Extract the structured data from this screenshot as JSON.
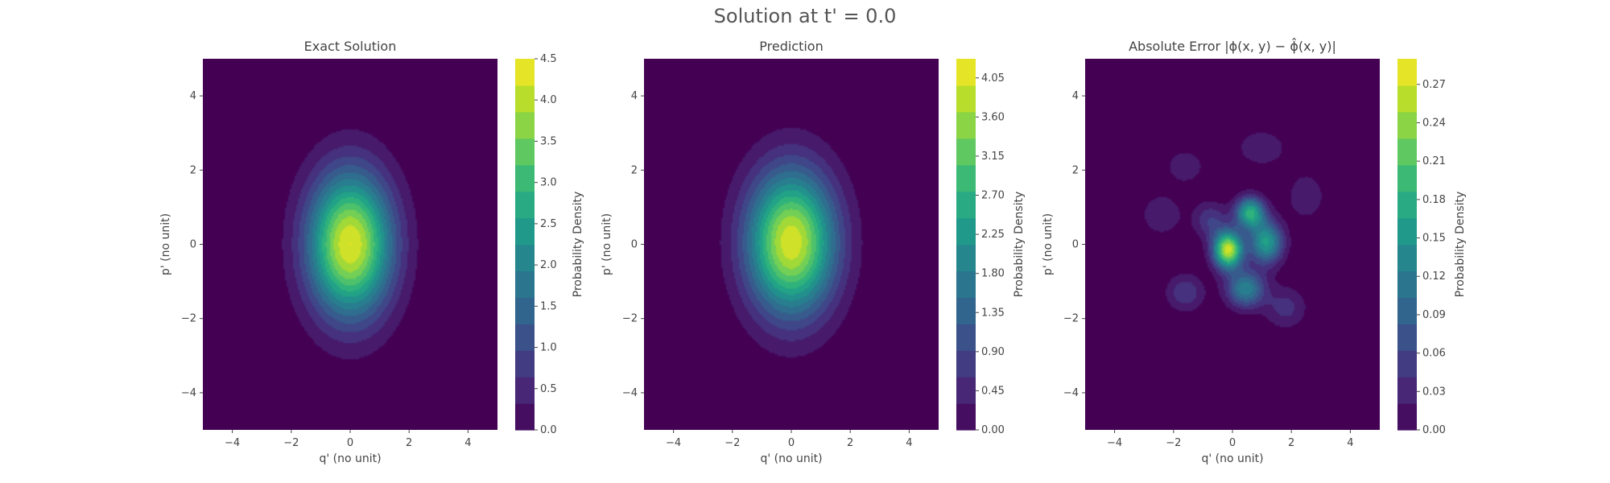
{
  "figure": {
    "suptitle": "Solution at t' = 0.0"
  },
  "colors": {
    "viridis": [
      "#440154",
      "#482878",
      "#3e4989",
      "#31688e",
      "#26828e",
      "#1f9e89",
      "#35b779",
      "#6ece58",
      "#b5de2b",
      "#fde725"
    ],
    "text": "#444444"
  },
  "chart_data": [
    {
      "type": "heatmap",
      "title": "Exact Solution",
      "xlabel": "q' (no unit)",
      "ylabel": "p' (no unit)",
      "xlim": [
        -5,
        5
      ],
      "ylim": [
        -5,
        5
      ],
      "xticks": [
        "−4",
        "−2",
        "0",
        "2",
        "4"
      ],
      "yticks": [
        "4",
        "2",
        "0",
        "−2",
        "−4"
      ],
      "colorbar": {
        "label": "Probability Density",
        "range": [
          0,
          4.5
        ],
        "ticks": [
          "0.0",
          "0.5",
          "1.0",
          "1.5",
          "2.0",
          "2.5",
          "3.0",
          "3.5",
          "4.0",
          "4.5"
        ]
      },
      "field": {
        "description": "Gaussian peak",
        "peaks": [
          {
            "q": 0,
            "p": 0,
            "amplitude": 4.5,
            "sigma_q": 1.0,
            "sigma_p": 1.35
          }
        ]
      }
    },
    {
      "type": "heatmap",
      "title": "Prediction",
      "xlabel": "q' (no unit)",
      "ylabel": "p' (no unit)",
      "xlim": [
        -5,
        5
      ],
      "ylim": [
        -5,
        5
      ],
      "xticks": [
        "−4",
        "−2",
        "0",
        "2",
        "4"
      ],
      "yticks": [
        "4",
        "2",
        "0",
        "−2",
        "−4"
      ],
      "colorbar": {
        "label": "Probability Density",
        "range": [
          0,
          4.27
        ],
        "ticks": [
          "0.00",
          "0.45",
          "0.90",
          "1.35",
          "1.80",
          "2.25",
          "2.70",
          "3.15",
          "3.60",
          "4.05"
        ]
      },
      "field": {
        "description": "Gaussian peak with slight distortion",
        "peaks": [
          {
            "q": 0,
            "p": 0.05,
            "amplitude": 4.2,
            "sigma_q": 1.05,
            "sigma_p": 1.35
          }
        ]
      }
    },
    {
      "type": "heatmap",
      "title": "Absolute Error |ϕ(x, y) − ϕ̂(x, y)|",
      "xlabel": "q' (no unit)",
      "ylabel": "p' (no unit)",
      "xlim": [
        -5,
        5
      ],
      "ylim": [
        -5,
        5
      ],
      "xticks": [
        "−4",
        "−2",
        "0",
        "2",
        "4"
      ],
      "yticks": [
        "4",
        "2",
        "0",
        "−2",
        "−4"
      ],
      "colorbar": {
        "label": "Probability Density",
        "range": [
          0,
          0.29
        ],
        "ticks": [
          "0.00",
          "0.03",
          "0.06",
          "0.09",
          "0.12",
          "0.15",
          "0.18",
          "0.21",
          "0.24",
          "0.27"
        ]
      },
      "field": {
        "description": "Error lobes around origin",
        "peaks": [
          {
            "q": -0.15,
            "p": -0.15,
            "amplitude": 0.28,
            "sigma_q": 0.35,
            "sigma_p": 0.35
          },
          {
            "q": 0.6,
            "p": 0.85,
            "amplitude": 0.19,
            "sigma_q": 0.35,
            "sigma_p": 0.3
          },
          {
            "q": 1.15,
            "p": 0.05,
            "amplitude": 0.17,
            "sigma_q": 0.4,
            "sigma_p": 0.4
          },
          {
            "q": 0.45,
            "p": -1.2,
            "amplitude": 0.14,
            "sigma_q": 0.45,
            "sigma_p": 0.35
          },
          {
            "q": -0.75,
            "p": 0.65,
            "amplitude": 0.06,
            "sigma_q": 0.4,
            "sigma_p": 0.35
          },
          {
            "q": -1.6,
            "p": -1.3,
            "amplitude": 0.06,
            "sigma_q": 0.45,
            "sigma_p": 0.35
          },
          {
            "q": 1.8,
            "p": -1.7,
            "amplitude": 0.05,
            "sigma_q": 0.5,
            "sigma_p": 0.4
          },
          {
            "q": -2.4,
            "p": 0.8,
            "amplitude": 0.04,
            "sigma_q": 0.5,
            "sigma_p": 0.4
          },
          {
            "q": 2.5,
            "p": 1.3,
            "amplitude": 0.04,
            "sigma_q": 0.45,
            "sigma_p": 0.45
          },
          {
            "q": 1.0,
            "p": 2.6,
            "amplitude": 0.04,
            "sigma_q": 0.6,
            "sigma_p": 0.35
          },
          {
            "q": -1.6,
            "p": 2.1,
            "amplitude": 0.035,
            "sigma_q": 0.5,
            "sigma_p": 0.35
          }
        ]
      }
    }
  ]
}
